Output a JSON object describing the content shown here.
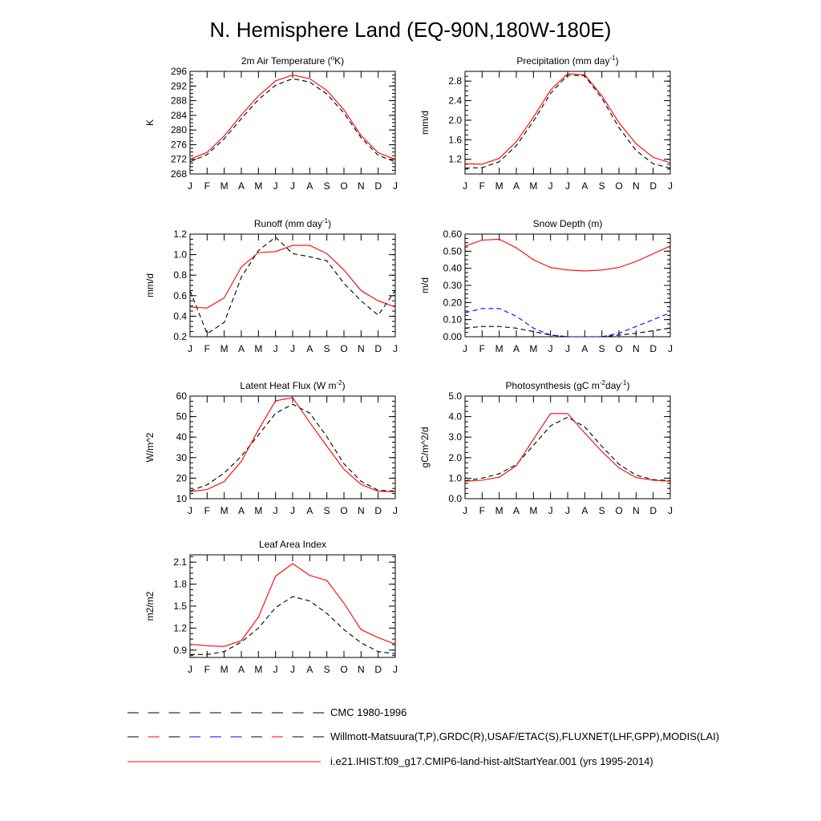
{
  "title": "N. Hemisphere Land (EQ-90N,180W-180E)",
  "legend": {
    "entries": [
      {
        "label": "CMC 1980-1996",
        "style": "dashed",
        "color": "#000000"
      },
      {
        "label": "Willmott-Matsuura(T,P),GRDC(R),USAF/ETAC(S),FLUXNET(LHF,GPP),MODIS(LAI)",
        "style": "dashed",
        "color": "#000000",
        "accents": [
          "#ff0000",
          "#0000ff"
        ]
      },
      {
        "label": "i.e21.IHIST.f09_g17.CMIP6-land-hist-altStartYear.001 (yrs 1995-2014)",
        "style": "solid",
        "color": "#ff0000"
      }
    ]
  },
  "colors": {
    "model": "#ff0000",
    "observed": "#000000",
    "cmc": "#0000ff"
  },
  "chart_data": [
    {
      "type": "line",
      "title": "2m Air Temperature (",
      "title_sup": "o",
      "title_tail": "K)",
      "ylabel": "K",
      "categories": [
        "J",
        "F",
        "M",
        "A",
        "M",
        "J",
        "J",
        "A",
        "S",
        "O",
        "N",
        "D",
        "J"
      ],
      "ylim": [
        268,
        296
      ],
      "yticks": [
        268,
        272,
        276,
        280,
        284,
        288,
        292,
        296
      ],
      "ytick_labels": [
        "268",
        "272",
        "276",
        "280",
        "284",
        "288",
        "292",
        "296"
      ],
      "series": [
        {
          "role": "observed",
          "color": "#000000",
          "dash": true,
          "values": [
            271.3,
            273.3,
            277.6,
            283.1,
            288.3,
            292.2,
            294.0,
            293.1,
            289.8,
            284.6,
            277.9,
            273.1,
            271.3
          ]
        },
        {
          "role": "model",
          "color": "#ff0000",
          "dash": false,
          "values": [
            272.0,
            273.9,
            278.4,
            284.1,
            289.3,
            293.4,
            295.0,
            294.0,
            290.8,
            285.5,
            278.5,
            273.8,
            272.0
          ]
        }
      ]
    },
    {
      "type": "line",
      "title": "Precipitation (mm day",
      "title_sup": "-1",
      "title_tail": ")",
      "ylabel": "mm/d",
      "categories": [
        "J",
        "F",
        "M",
        "A",
        "M",
        "J",
        "J",
        "A",
        "S",
        "O",
        "N",
        "D",
        "J"
      ],
      "ylim": [
        0.9,
        3.0
      ],
      "yticks": [
        1.2,
        1.6,
        2.0,
        2.4,
        2.8
      ],
      "ytick_labels": [
        "1.2",
        "1.6",
        "2.0",
        "2.4",
        "2.8"
      ],
      "series": [
        {
          "role": "observed",
          "color": "#000000",
          "dash": true,
          "values": [
            1.02,
            1.03,
            1.15,
            1.48,
            1.98,
            2.55,
            2.92,
            2.91,
            2.45,
            1.85,
            1.38,
            1.11,
            1.02
          ]
        },
        {
          "role": "model",
          "color": "#ff0000",
          "dash": false,
          "values": [
            1.11,
            1.1,
            1.22,
            1.56,
            2.06,
            2.62,
            2.95,
            2.93,
            2.5,
            1.95,
            1.52,
            1.24,
            1.13
          ]
        }
      ]
    },
    {
      "type": "line",
      "title": "Runoff (mm day",
      "title_sup": "-1",
      "title_tail": ")",
      "ylabel": "mm/d",
      "categories": [
        "J",
        "F",
        "M",
        "A",
        "M",
        "J",
        "J",
        "A",
        "S",
        "O",
        "N",
        "D",
        "J"
      ],
      "ylim": [
        0.2,
        1.2
      ],
      "yticks": [
        0.2,
        0.4,
        0.6,
        0.8,
        1.0,
        1.2
      ],
      "ytick_labels": [
        "0.2",
        "0.4",
        "0.6",
        "0.8",
        "1.0",
        "1.2"
      ],
      "series": [
        {
          "role": "observed",
          "color": "#000000",
          "dash": true,
          "values": [
            0.65,
            0.23,
            0.34,
            0.78,
            1.04,
            1.17,
            1.01,
            0.98,
            0.94,
            0.72,
            0.55,
            0.41,
            0.65
          ]
        },
        {
          "role": "model",
          "color": "#ff0000",
          "dash": false,
          "values": [
            0.49,
            0.48,
            0.58,
            0.88,
            1.02,
            1.03,
            1.09,
            1.09,
            1.01,
            0.85,
            0.65,
            0.55,
            0.49
          ]
        }
      ]
    },
    {
      "type": "line",
      "title": "Snow Depth (m)",
      "title_sup": "",
      "title_tail": "",
      "ylabel": "m/d",
      "categories": [
        "J",
        "F",
        "M",
        "A",
        "M",
        "J",
        "J",
        "A",
        "S",
        "O",
        "N",
        "D",
        "J"
      ],
      "ylim": [
        0.0,
        0.6
      ],
      "yticks": [
        0.0,
        0.1,
        0.2,
        0.3,
        0.4,
        0.5,
        0.6
      ],
      "ytick_labels": [
        "0.00",
        "0.10",
        "0.20",
        "0.30",
        "0.40",
        "0.50",
        "0.60"
      ],
      "series": [
        {
          "role": "observed",
          "color": "#000000",
          "dash": true,
          "values": [
            0.05,
            0.06,
            0.06,
            0.05,
            0.03,
            0.01,
            0.0,
            0.0,
            0.0,
            0.01,
            0.02,
            0.035,
            0.05
          ]
        },
        {
          "role": "cmc",
          "color": "#0000ff",
          "dash": true,
          "values": [
            0.14,
            0.165,
            0.165,
            0.12,
            0.05,
            0.01,
            0.0,
            0.0,
            0.0,
            0.02,
            0.06,
            0.1,
            0.14
          ]
        },
        {
          "role": "model",
          "color": "#ff0000",
          "dash": false,
          "values": [
            0.53,
            0.565,
            0.57,
            0.52,
            0.45,
            0.405,
            0.39,
            0.385,
            0.39,
            0.405,
            0.44,
            0.485,
            0.53
          ]
        }
      ]
    },
    {
      "type": "line",
      "title": "Latent Heat Flux (W m",
      "title_sup": "-2",
      "title_tail": ")",
      "ylabel": "W/m^2",
      "categories": [
        "J",
        "F",
        "M",
        "A",
        "M",
        "J",
        "J",
        "A",
        "S",
        "O",
        "N",
        "D",
        "J"
      ],
      "ylim": [
        10,
        60
      ],
      "yticks": [
        10,
        20,
        30,
        40,
        50,
        60
      ],
      "ytick_labels": [
        "10",
        "20",
        "30",
        "40",
        "50",
        "60"
      ],
      "series": [
        {
          "role": "observed",
          "color": "#000000",
          "dash": true,
          "values": [
            13.7,
            16.8,
            22.5,
            30.7,
            41.0,
            51.6,
            56.0,
            51.7,
            40.2,
            27.0,
            18.5,
            14.1,
            13.7
          ]
        },
        {
          "role": "model",
          "color": "#ff0000",
          "dash": false,
          "values": [
            13.4,
            14.5,
            18.4,
            28.2,
            43.5,
            57.7,
            59.2,
            47.2,
            35.6,
            24.3,
            17.0,
            13.6,
            13.4
          ]
        }
      ]
    },
    {
      "type": "line",
      "title": "Photosynthesis (gC m",
      "title_sup": "-2",
      "title_tail": "day",
      "title_sup2": "-1",
      "title_tail2": ")",
      "ylabel": "gC/m^2/d",
      "categories": [
        "J",
        "F",
        "M",
        "A",
        "M",
        "J",
        "J",
        "A",
        "S",
        "O",
        "N",
        "D",
        "J"
      ],
      "ylim": [
        0.0,
        5.0
      ],
      "yticks": [
        0.0,
        1.0,
        2.0,
        3.0,
        4.0,
        5.0
      ],
      "ytick_labels": [
        "0.0",
        "1.0",
        "2.0",
        "3.0",
        "4.0",
        "5.0"
      ],
      "series": [
        {
          "role": "observed",
          "color": "#000000",
          "dash": true,
          "values": [
            0.88,
            1.0,
            1.22,
            1.66,
            2.6,
            3.55,
            3.97,
            3.5,
            2.55,
            1.68,
            1.15,
            0.93,
            0.88
          ]
        },
        {
          "role": "model",
          "color": "#ff0000",
          "dash": false,
          "values": [
            0.85,
            0.9,
            1.05,
            1.6,
            2.9,
            4.15,
            4.15,
            3.2,
            2.3,
            1.5,
            1.03,
            0.9,
            0.85
          ]
        }
      ]
    },
    {
      "type": "line",
      "title": "Leaf Area Index",
      "title_sup": "",
      "title_tail": "",
      "ylabel": "m2/m2",
      "categories": [
        "J",
        "F",
        "M",
        "A",
        "M",
        "J",
        "J",
        "A",
        "S",
        "O",
        "N",
        "D",
        "J"
      ],
      "ylim": [
        0.8,
        2.2
      ],
      "yticks": [
        0.9,
        1.2,
        1.5,
        1.8,
        2.1
      ],
      "ytick_labels": [
        "0.9",
        "1.2",
        "1.5",
        "1.8",
        "2.1"
      ],
      "series": [
        {
          "role": "observed",
          "color": "#000000",
          "dash": true,
          "values": [
            0.84,
            0.84,
            0.88,
            1.01,
            1.2,
            1.48,
            1.63,
            1.57,
            1.4,
            1.18,
            1.0,
            0.88,
            0.85
          ]
        },
        {
          "role": "model",
          "color": "#ff0000",
          "dash": false,
          "values": [
            0.98,
            0.96,
            0.95,
            1.03,
            1.35,
            1.91,
            2.08,
            1.92,
            1.85,
            1.54,
            1.18,
            1.07,
            0.98
          ]
        }
      ]
    }
  ]
}
